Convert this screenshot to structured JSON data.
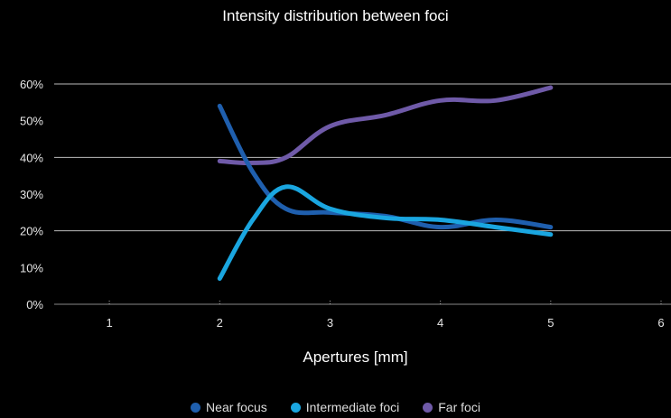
{
  "chart_data": {
    "type": "line",
    "title": "Intensity distribution between foci",
    "xlabel": "Apertures [mm]",
    "ylabel": "",
    "xlim": [
      0.5,
      6
    ],
    "ylim": [
      0,
      60
    ],
    "x_ticks": [
      1,
      2,
      3,
      4,
      5,
      6
    ],
    "y_ticks": [
      0,
      10,
      20,
      30,
      40,
      50,
      60
    ],
    "y_tick_labels": [
      "0%",
      "10%",
      "20%",
      "30%",
      "40%",
      "50%",
      "60%"
    ],
    "grid": "horizontal",
    "legend_position": "bottom",
    "series": [
      {
        "name": "Near focus",
        "color": "#1f5fae",
        "x": [
          2,
          2.3,
          2.6,
          3,
          3.5,
          4,
          4.5,
          5
        ],
        "values": [
          54,
          36,
          26,
          25,
          24,
          21,
          23,
          21
        ]
      },
      {
        "name": "Intermediate foci",
        "color": "#1aa6e0",
        "x": [
          2,
          2.3,
          2.6,
          3,
          3.5,
          4,
          4.5,
          5
        ],
        "values": [
          7,
          23,
          32,
          26,
          23.5,
          23,
          21,
          19
        ]
      },
      {
        "name": "Far foci",
        "color": "#6f5aa8",
        "x": [
          2,
          2.3,
          2.6,
          3,
          3.5,
          4,
          4.5,
          5
        ],
        "values": [
          39,
          38.5,
          40,
          48.5,
          51.5,
          55.5,
          55.5,
          59
        ]
      }
    ]
  }
}
